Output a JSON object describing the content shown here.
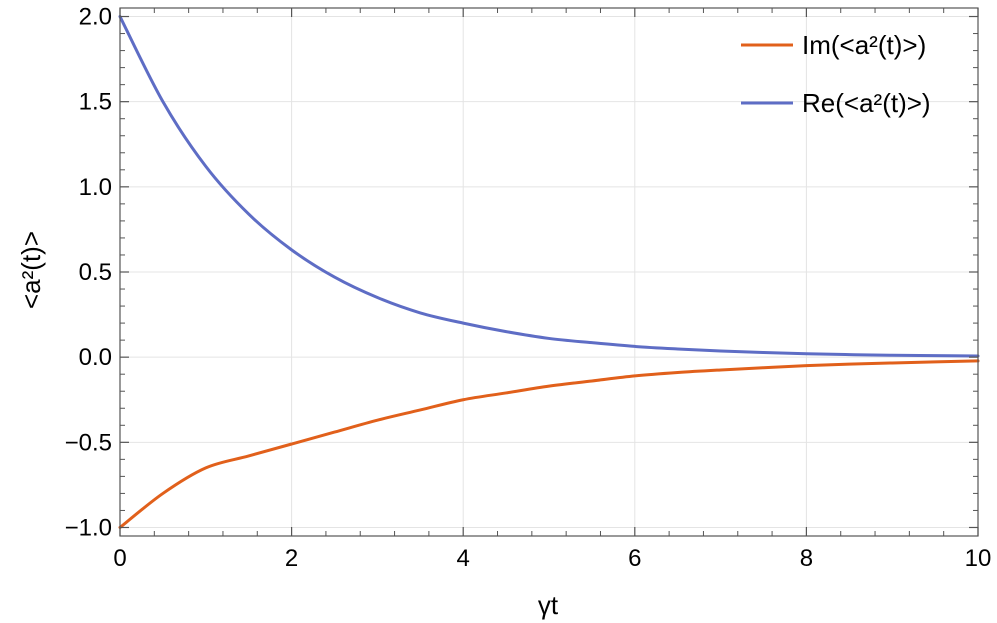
{
  "chart_data": {
    "type": "line",
    "title": "",
    "xlabel": "γt",
    "ylabel": "<a²(t)>",
    "xlim": [
      0,
      10
    ],
    "ylim": [
      -1.05,
      2.05
    ],
    "x_ticks": [
      {
        "value": 0,
        "label": "0"
      },
      {
        "value": 2,
        "label": "2"
      },
      {
        "value": 4,
        "label": "4"
      },
      {
        "value": 6,
        "label": "6"
      },
      {
        "value": 8,
        "label": "8"
      },
      {
        "value": 10,
        "label": "10"
      }
    ],
    "y_ticks": [
      {
        "value": -1.0,
        "label": "−1.0"
      },
      {
        "value": -0.5,
        "label": "−0.5"
      },
      {
        "value": 0.0,
        "label": "0.0"
      },
      {
        "value": 0.5,
        "label": "0.5"
      },
      {
        "value": 1.0,
        "label": "1.0"
      },
      {
        "value": 1.5,
        "label": "1.5"
      },
      {
        "value": 2.0,
        "label": "2.0"
      }
    ],
    "grid": true,
    "legend_position": "top-right",
    "x": [
      0,
      0.5,
      1,
      1.5,
      2,
      2.5,
      3,
      3.5,
      4,
      4.5,
      5,
      5.5,
      6,
      6.5,
      7,
      7.5,
      8,
      8.5,
      9,
      9.5,
      10
    ],
    "series": [
      {
        "name": "Im(<a²(t)>)",
        "color": "#E1601B",
        "values": [
          -1.0,
          -0.8,
          -0.65,
          -0.58,
          -0.51,
          -0.44,
          -0.37,
          -0.31,
          -0.25,
          -0.21,
          -0.17,
          -0.14,
          -0.11,
          -0.09,
          -0.075,
          -0.062,
          -0.05,
          -0.041,
          -0.034,
          -0.028,
          -0.022
        ]
      },
      {
        "name": "Re(<a²(t)>)",
        "color": "#5E6DC5",
        "values": [
          2.0,
          1.5,
          1.12,
          0.84,
          0.63,
          0.47,
          0.35,
          0.26,
          0.2,
          0.15,
          0.11,
          0.085,
          0.063,
          0.048,
          0.036,
          0.027,
          0.02,
          0.015,
          0.011,
          0.009,
          0.007
        ]
      }
    ]
  }
}
